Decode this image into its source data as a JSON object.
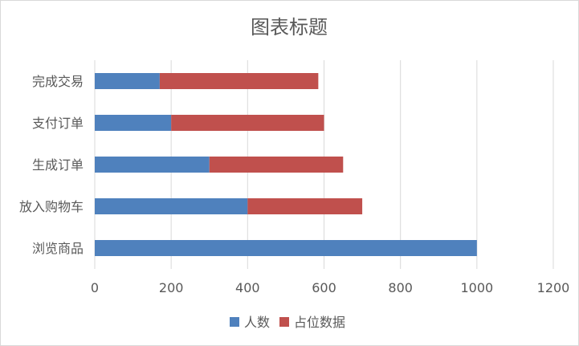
{
  "chart_data": {
    "type": "bar",
    "orientation": "horizontal",
    "stacked": true,
    "title": "图表标题",
    "categories": [
      "完成交易",
      "支付订单",
      "生成订单",
      "放入购物车",
      "浏览商品"
    ],
    "series": [
      {
        "name": "人数",
        "values": [
          170,
          200,
          300,
          400,
          1000
        ],
        "color": "#4f81bd"
      },
      {
        "name": "占位数据",
        "values": [
          415,
          400,
          350,
          300,
          0
        ],
        "color": "#c0504d"
      }
    ],
    "xlim": [
      0,
      1200
    ],
    "xticks": [
      "0",
      "200",
      "400",
      "600",
      "800",
      "1000",
      "1200"
    ],
    "grid": true,
    "legend": "bottom"
  }
}
